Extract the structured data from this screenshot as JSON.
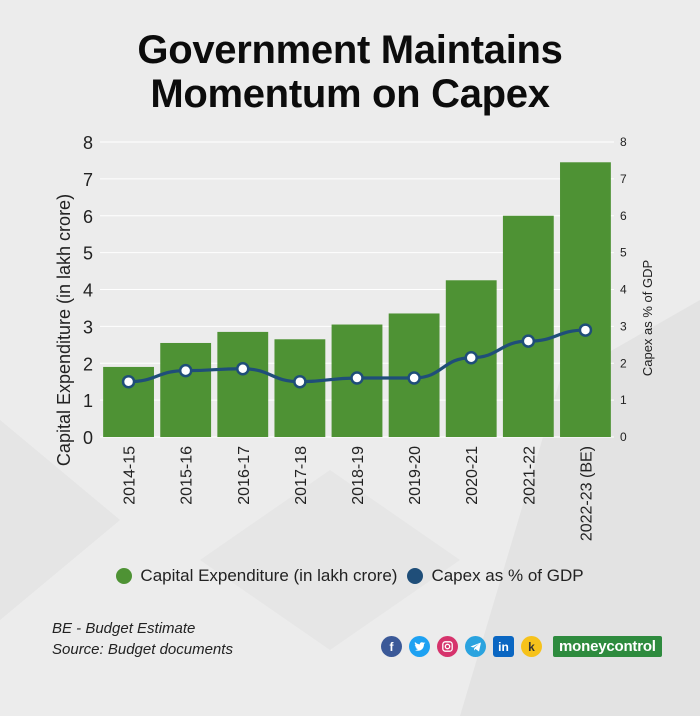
{
  "title_line1": "Government Maintains",
  "title_line2": "Momentum on Capex",
  "chart_data": {
    "type": "bar+line",
    "categories": [
      "2014-15",
      "2015-16",
      "2016-17",
      "2017-18",
      "2018-19",
      "2019-20",
      "2020-21",
      "2021-22",
      "2022-23 (BE)"
    ],
    "series": [
      {
        "name": "Capital Expenditure (in lakh crore)",
        "type": "bar",
        "axis": "left",
        "color": "#4e9234",
        "values": [
          1.9,
          2.55,
          2.85,
          2.65,
          3.05,
          3.35,
          4.25,
          6.0,
          7.45
        ]
      },
      {
        "name": "Capex as % of GDP",
        "type": "line",
        "axis": "right",
        "color": "#1f4e79",
        "values": [
          1.5,
          1.8,
          1.85,
          1.5,
          1.6,
          1.6,
          2.15,
          2.6,
          2.9
        ]
      }
    ],
    "ylabel_left": "Capital Expenditure (in lakh crore)",
    "ylabel_right": "Capex as % of GDP",
    "ylim_left": [
      0,
      8
    ],
    "ylim_right": [
      0,
      8
    ],
    "yticks_left": [
      "0",
      "1",
      "2",
      "3",
      "4",
      "5",
      "6",
      "7",
      "8"
    ],
    "yticks_right": [
      "0",
      "1",
      "2",
      "3",
      "4",
      "5",
      "6",
      "7",
      "8"
    ],
    "grid": true
  },
  "legend": {
    "capex_label": "Capital Expenditure (in lakh crore)",
    "gdp_label": "Capex as % of GDP",
    "capex_color": "#4e9234",
    "gdp_color": "#1f4e79"
  },
  "notes": {
    "line1": "BE - Budget Estimate",
    "line2": "Source: Budget documents"
  },
  "social": {
    "icons": [
      "facebook-icon",
      "twitter-icon",
      "instagram-icon",
      "telegram-icon",
      "linkedin-icon",
      "koo-icon"
    ],
    "brand": "moneycontrol"
  }
}
